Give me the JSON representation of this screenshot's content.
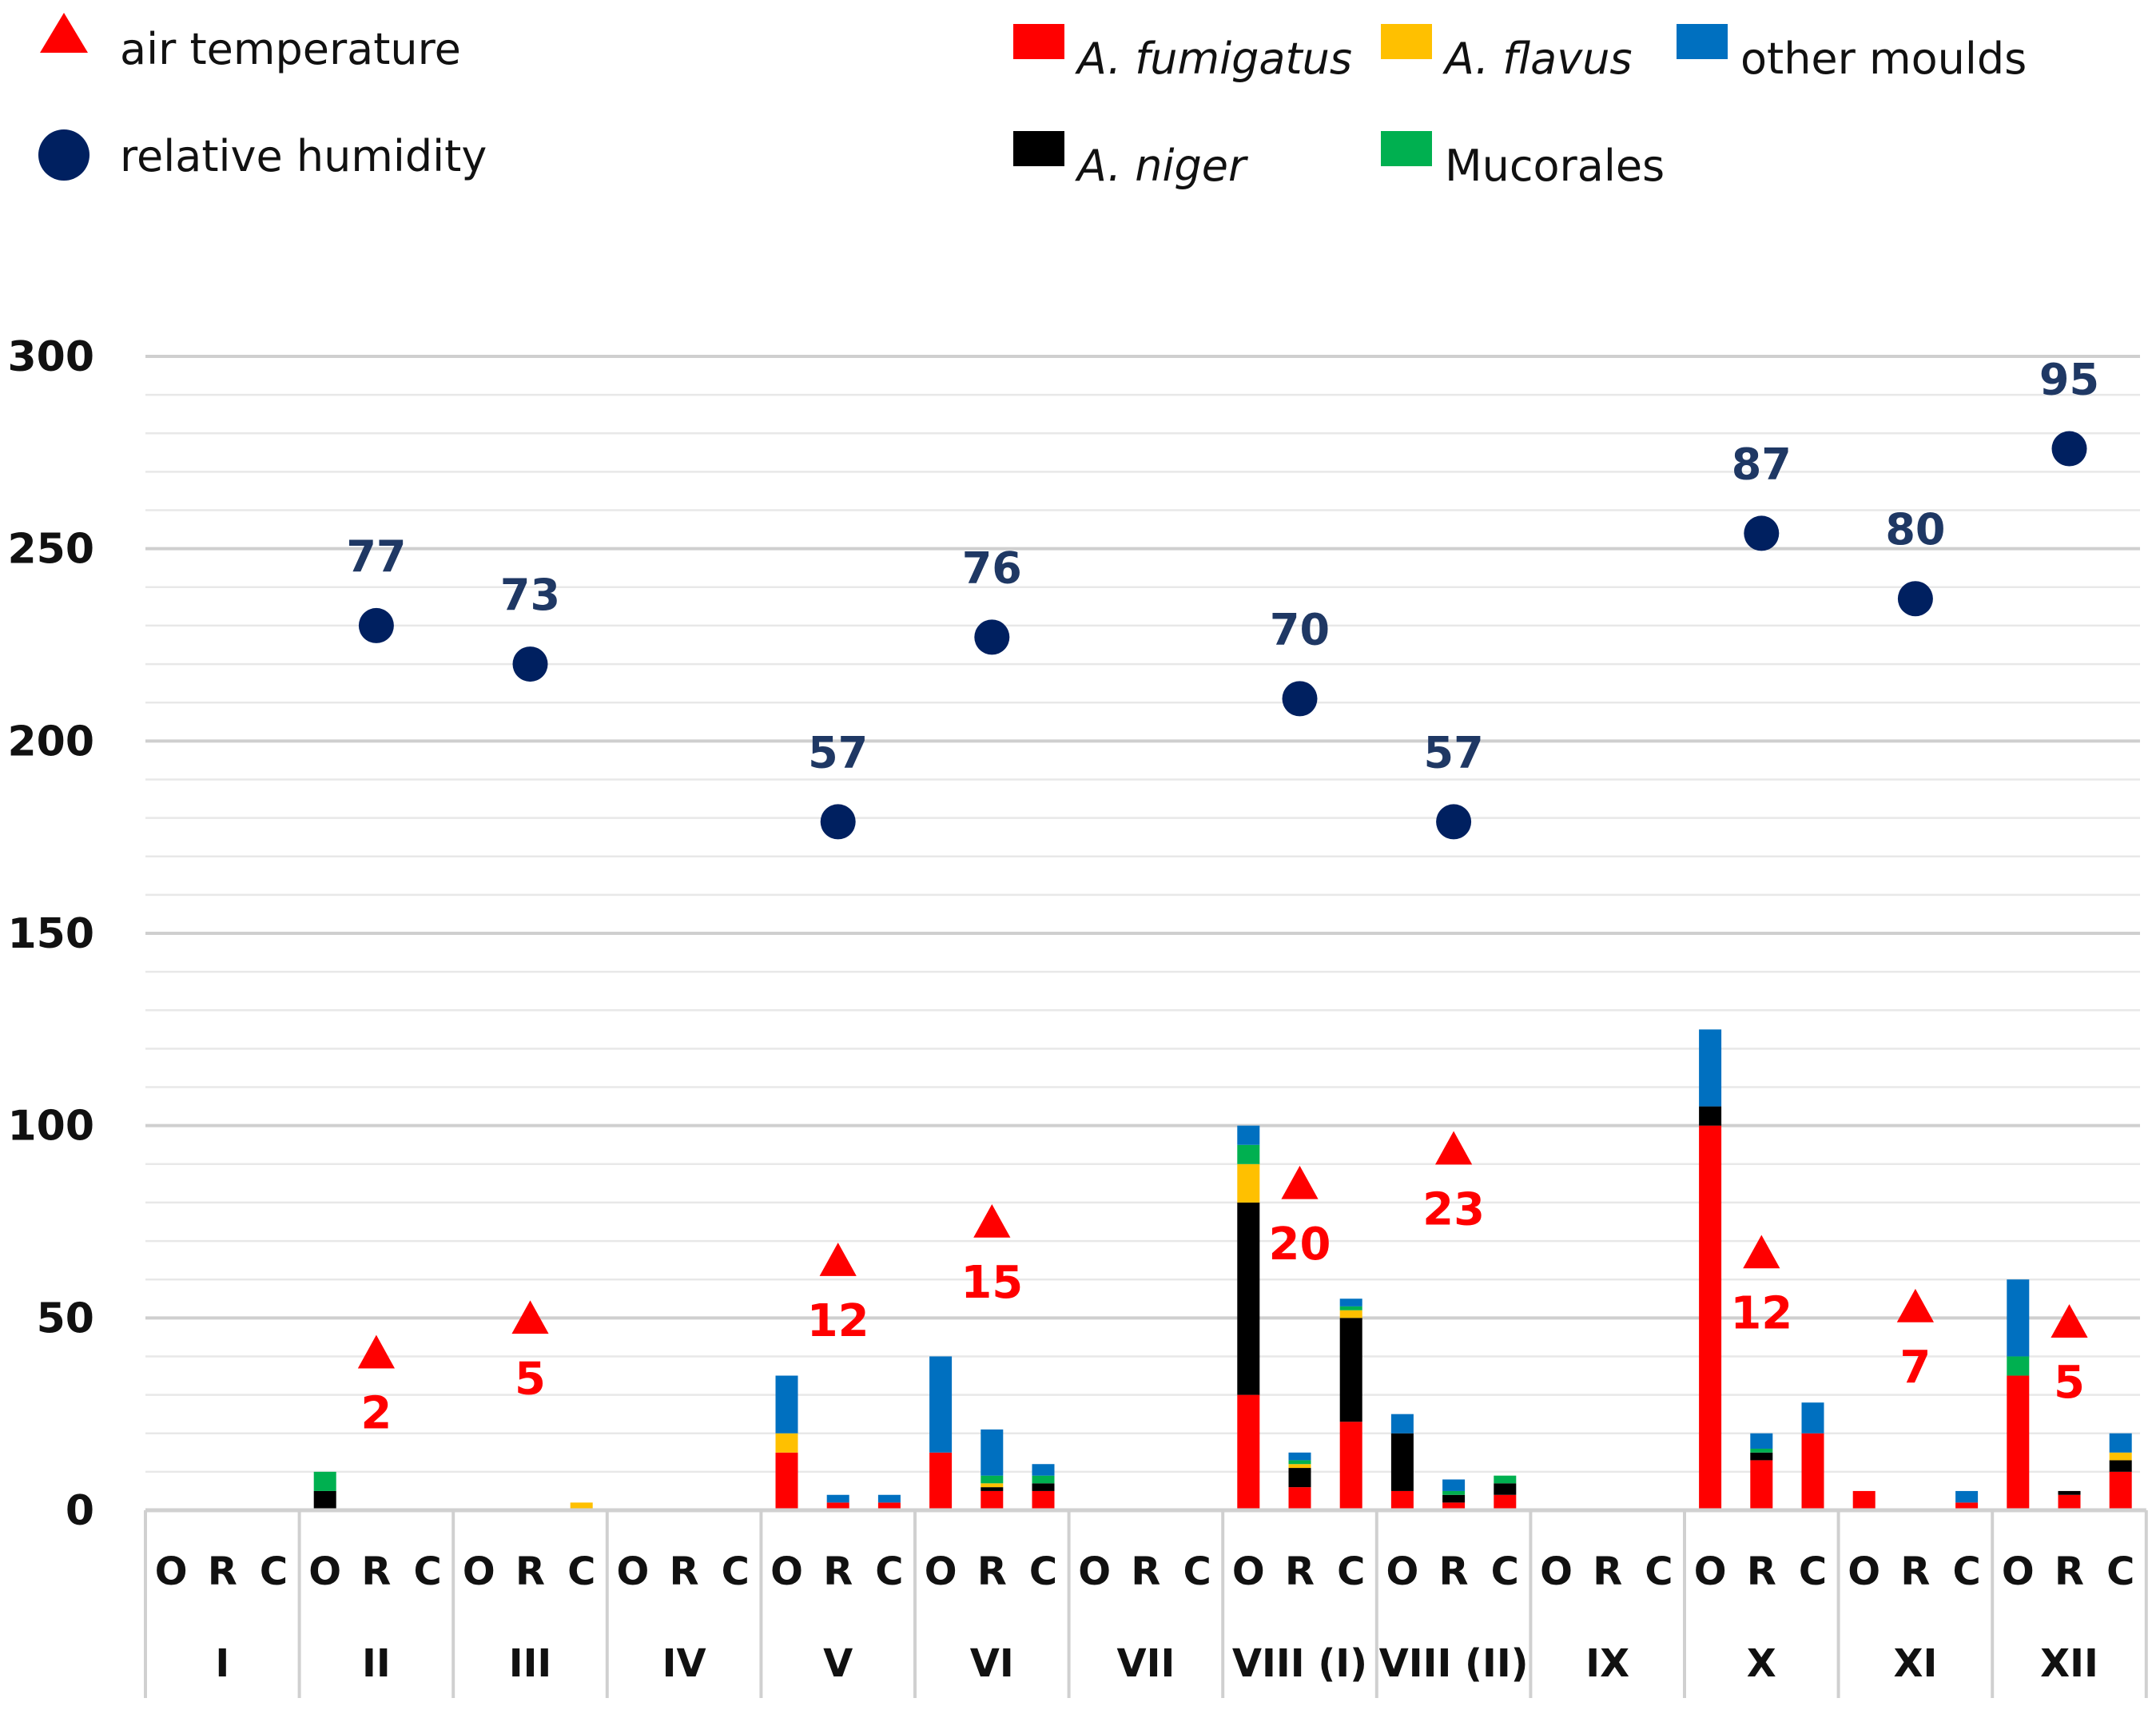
{
  "chart_data": {
    "type": "bar",
    "stacked": true,
    "ylim": [
      0,
      300
    ],
    "yticks": [
      0,
      50,
      100,
      150,
      200,
      250,
      300
    ],
    "grid": true,
    "subcategories": [
      "O",
      "R",
      "C"
    ],
    "groups": [
      "I",
      "II",
      "III",
      "IV",
      "V",
      "VI",
      "VII",
      "VIII (I)",
      "VIII (II)",
      "IX",
      "X",
      "XI",
      "XII"
    ],
    "series": [
      {
        "name": "A. fumigatus",
        "italic": true,
        "color": "#ff0000",
        "values": [
          [
            0,
            0,
            0
          ],
          [
            0,
            0,
            0
          ],
          [
            0,
            0,
            0
          ],
          [
            0,
            0,
            0
          ],
          [
            15,
            2,
            2
          ],
          [
            15,
            5,
            5
          ],
          [
            0,
            0,
            0
          ],
          [
            30,
            6,
            23
          ],
          [
            5,
            2,
            4
          ],
          [
            0,
            0,
            0
          ],
          [
            100,
            13,
            20
          ],
          [
            5,
            0,
            2
          ],
          [
            35,
            4,
            10
          ]
        ]
      },
      {
        "name": "A. niger",
        "italic": true,
        "color": "#000000",
        "values": [
          [
            0,
            0,
            0
          ],
          [
            5,
            0,
            0
          ],
          [
            0,
            0,
            0
          ],
          [
            0,
            0,
            0
          ],
          [
            0,
            0,
            0
          ],
          [
            0,
            1,
            2
          ],
          [
            0,
            0,
            0
          ],
          [
            50,
            5,
            27
          ],
          [
            15,
            2,
            3
          ],
          [
            0,
            0,
            0
          ],
          [
            5,
            2,
            0
          ],
          [
            0,
            0,
            0
          ],
          [
            0,
            1,
            3
          ]
        ]
      },
      {
        "name": "A. flavus",
        "italic": true,
        "color": "#ffc000",
        "values": [
          [
            0,
            0,
            0
          ],
          [
            0,
            0,
            0
          ],
          [
            0,
            0,
            2
          ],
          [
            0,
            0,
            0
          ],
          [
            5,
            0,
            0
          ],
          [
            0,
            1,
            0
          ],
          [
            0,
            0,
            0
          ],
          [
            10,
            1,
            2
          ],
          [
            0,
            0,
            0
          ],
          [
            0,
            0,
            0
          ],
          [
            0,
            0,
            0
          ],
          [
            0,
            0,
            0
          ],
          [
            0,
            0,
            2
          ]
        ]
      },
      {
        "name": "Mucorales",
        "italic": false,
        "color": "#00b050",
        "values": [
          [
            0,
            0,
            0
          ],
          [
            5,
            0,
            0
          ],
          [
            0,
            0,
            0
          ],
          [
            0,
            0,
            0
          ],
          [
            0,
            0,
            0
          ],
          [
            0,
            2,
            2
          ],
          [
            0,
            0,
            0
          ],
          [
            5,
            1,
            1
          ],
          [
            0,
            1,
            2
          ],
          [
            0,
            0,
            0
          ],
          [
            0,
            1,
            0
          ],
          [
            0,
            0,
            0
          ],
          [
            5,
            0,
            0
          ]
        ]
      },
      {
        "name": "other moulds",
        "italic": false,
        "color": "#0070c0",
        "values": [
          [
            0,
            0,
            0
          ],
          [
            0,
            0,
            0
          ],
          [
            0,
            0,
            0
          ],
          [
            0,
            0,
            0
          ],
          [
            15,
            2,
            2
          ],
          [
            25,
            12,
            3
          ],
          [
            0,
            0,
            0
          ],
          [
            5,
            2,
            2
          ],
          [
            5,
            3,
            0
          ],
          [
            0,
            0,
            0
          ],
          [
            20,
            4,
            8
          ],
          [
            0,
            0,
            3
          ],
          [
            20,
            0,
            5
          ]
        ]
      }
    ],
    "relative_humidity": {
      "name": "relative humidity",
      "color": "#002060",
      "label_color": "#1f3864",
      "points": [
        {
          "group": "II",
          "y": 230,
          "label": "77"
        },
        {
          "group": "III",
          "y": 220,
          "label": "73"
        },
        {
          "group": "V",
          "y": 179,
          "label": "57"
        },
        {
          "group": "VI",
          "y": 227,
          "label": "76"
        },
        {
          "group": "VIII (I)",
          "y": 211,
          "label": "70"
        },
        {
          "group": "VIII (II)",
          "y": 179,
          "label": "57"
        },
        {
          "group": "X",
          "y": 254,
          "label": "87"
        },
        {
          "group": "XI",
          "y": 237,
          "label": "80"
        },
        {
          "group": "XII",
          "y": 276,
          "label": "95"
        }
      ]
    },
    "air_temperature": {
      "name": "air temperature",
      "color": "#ff0000",
      "points": [
        {
          "group": "II",
          "y": 41,
          "label": "2"
        },
        {
          "group": "III",
          "y": 50,
          "label": "5"
        },
        {
          "group": "V",
          "y": 65,
          "label": "12"
        },
        {
          "group": "VI",
          "y": 75,
          "label": "15"
        },
        {
          "group": "VIII (I)",
          "y": 85,
          "label": "20"
        },
        {
          "group": "VIII (II)",
          "y": 94,
          "label": "23"
        },
        {
          "group": "X",
          "y": 67,
          "label": "12"
        },
        {
          "group": "XI",
          "y": 53,
          "label": "7"
        },
        {
          "group": "XII",
          "y": 49,
          "label": "5"
        }
      ]
    },
    "legend_order": [
      {
        "ref": "air_temperature",
        "marker": "triangle"
      },
      {
        "ref": "relative_humidity",
        "marker": "circle"
      },
      {
        "ref": "A. fumigatus",
        "marker": "square"
      },
      {
        "ref": "A. flavus",
        "marker": "square"
      },
      {
        "ref": "other moulds",
        "marker": "square"
      },
      {
        "ref": "A. niger",
        "marker": "square"
      },
      {
        "ref": "Mucorales",
        "marker": "square"
      }
    ]
  }
}
